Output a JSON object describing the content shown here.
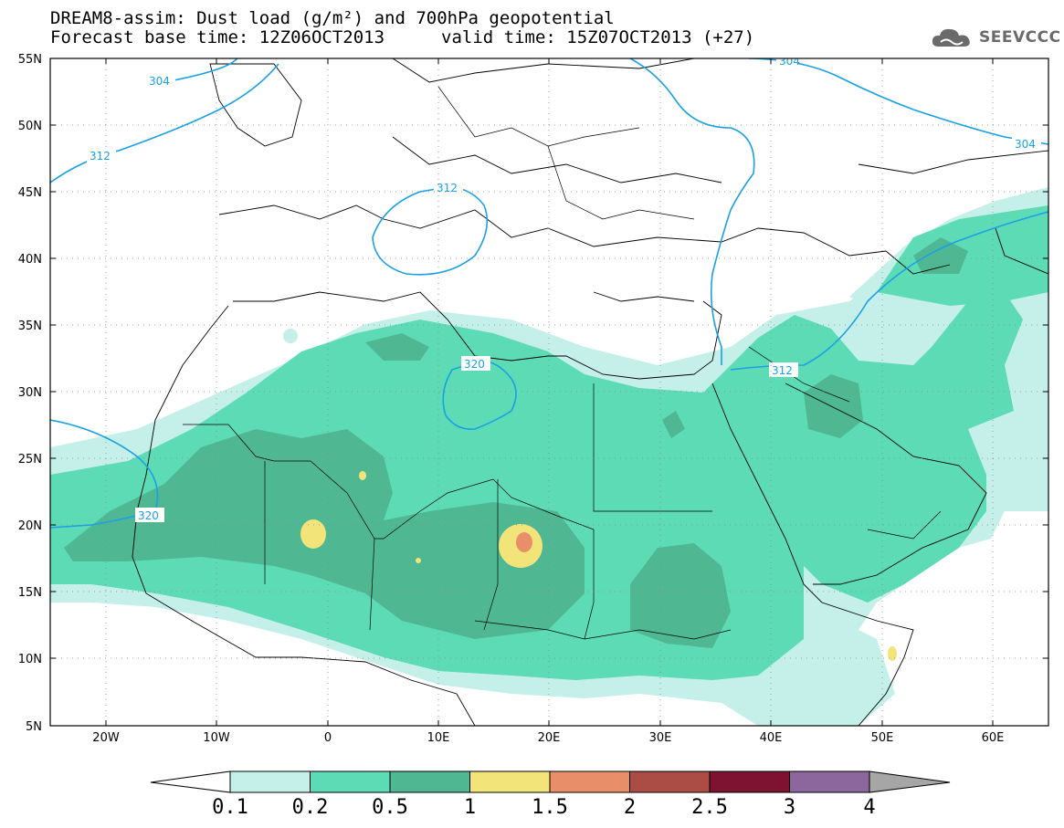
{
  "header": {
    "title_line1": "DREAM8-assim: Dust load (g/m²) and 700hPa geopotential",
    "title_line2": "Forecast base time: 12Z06OCT2013",
    "valid_time": "valid time: 15Z07OCT2013 (+27)",
    "logo_text": "SEEVCCC",
    "logo_icon": "cloud-icon"
  },
  "axes": {
    "lat_labels": [
      "55N",
      "50N",
      "45N",
      "40N",
      "35N",
      "30N",
      "25N",
      "20N",
      "15N",
      "10N",
      "5N"
    ],
    "lon_labels": [
      "20W",
      "10W",
      "0",
      "10E",
      "20E",
      "30E",
      "40E",
      "50E",
      "60E"
    ]
  },
  "contours": {
    "color": "#1aa0e6",
    "labels": [
      "304",
      "312",
      "312",
      "320",
      "312",
      "320",
      "304",
      "304"
    ]
  },
  "colorbar": {
    "labels": [
      "0.1",
      "0.2",
      "0.5",
      "1",
      "1.5",
      "2",
      "2.5",
      "3",
      "4"
    ],
    "colors": [
      "#ffffff",
      "#c5f0e9",
      "#5ddbb4",
      "#4fb893",
      "#f3e47a",
      "#e88f69",
      "#ab4c45",
      "#7e1331",
      "#8c679e",
      "#a6a6a6"
    ]
  },
  "dust_colors": {
    "level1": "#c5f0e9",
    "level2": "#5ddbb4",
    "level3": "#4fb893",
    "level4": "#f3e47a",
    "level5": "#e88f69"
  }
}
